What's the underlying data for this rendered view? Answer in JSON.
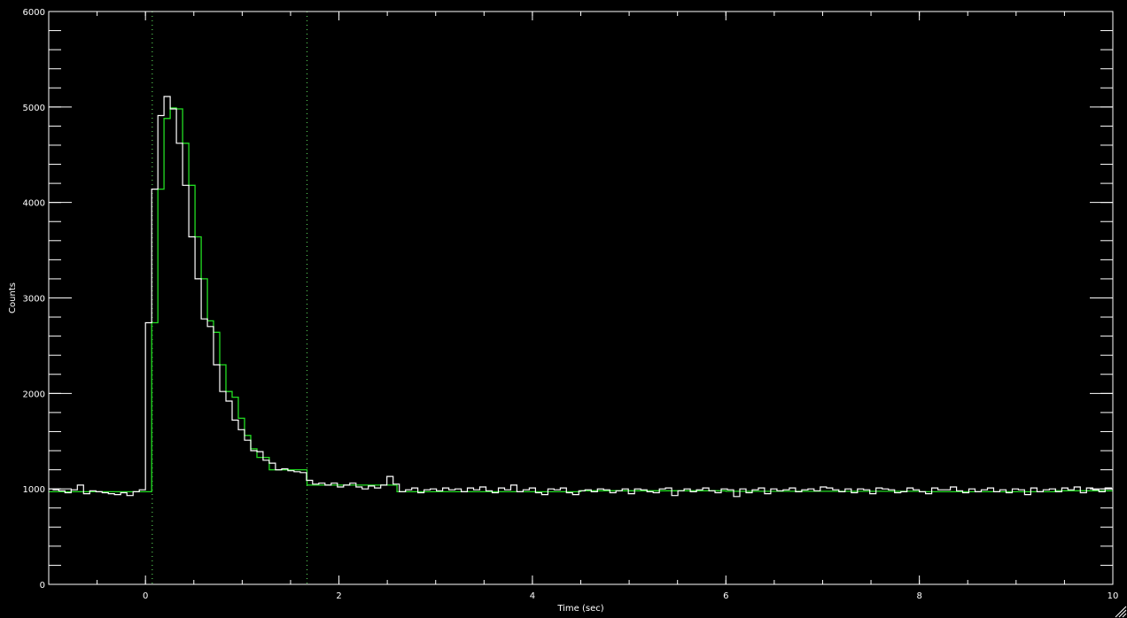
{
  "chart_data": {
    "type": "line",
    "xlabel": "Time (sec)",
    "ylabel": "Counts",
    "xlim": [
      -1,
      10
    ],
    "ylim": [
      0,
      6000
    ],
    "x_ticks": [
      0,
      2,
      4,
      6,
      8,
      10
    ],
    "y_ticks": [
      0,
      1000,
      2000,
      3000,
      4000,
      5000,
      6000
    ],
    "x_minor_step": 0.5,
    "y_minor_step": 200,
    "grid": false,
    "background_color": "#000000",
    "axis_color": "#ffffff",
    "vertical_markers": [
      {
        "x": 0.07,
        "color": "#55cc55",
        "style": "dotted"
      },
      {
        "x": 1.67,
        "color": "#55cc55",
        "style": "dotted"
      }
    ],
    "series": [
      {
        "kind": "observed-histogram",
        "color": "#ffffff",
        "bin_width": 0.064,
        "x_start": -0.96,
        "values": [
          990,
          980,
          960,
          990,
          1040,
          950,
          980,
          970,
          960,
          950,
          940,
          960,
          930,
          970,
          990,
          2740,
          4140,
          4910,
          5110,
          4980,
          4620,
          4180,
          3640,
          3200,
          2780,
          2700,
          2300,
          2020,
          1920,
          1720,
          1620,
          1510,
          1400,
          1390,
          1300,
          1270,
          1200,
          1210,
          1190,
          1180,
          1170,
          1090,
          1050,
          1060,
          1040,
          1060,
          1020,
          1040,
          1060,
          1020,
          1000,
          1030,
          1010,
          1040,
          1130,
          1050,
          970,
          990,
          1010,
          960,
          990,
          1000,
          980,
          1010,
          990,
          1000,
          970,
          1010,
          990,
          1020,
          980,
          960,
          1010,
          990,
          1040,
          970,
          990,
          1010,
          960,
          940,
          1000,
          990,
          1010,
          960,
          940,
          980,
          990,
          970,
          1000,
          990,
          960,
          980,
          1000,
          950,
          1000,
          990,
          970,
          960,
          1000,
          1010,
          930,
          980,
          1000,
          970,
          990,
          1010,
          980,
          960,
          1000,
          990,
          920,
          1000,
          960,
          990,
          1010,
          950,
          1000,
          980,
          990,
          1010,
          970,
          990,
          1000,
          980,
          1020,
          1010,
          990,
          970,
          1000,
          960,
          1000,
          990,
          950,
          1010,
          1000,
          990,
          960,
          970,
          1010,
          990,
          970,
          950,
          1010,
          990,
          990,
          1020,
          980,
          960,
          1000,
          970,
          990,
          1010,
          970,
          990,
          960,
          1000,
          990,
          940,
          1010,
          970,
          990,
          1000,
          970,
          1010,
          990,
          1020,
          960,
          1010,
          990,
          970,
          1010,
          1000,
          1040,
          980,
          1000,
          1010,
          1000
        ]
      },
      {
        "kind": "model-step",
        "color": "#22dd22",
        "bins": [
          {
            "x0": -1.0,
            "x1": 0.064,
            "y": 970
          },
          {
            "x0": 0.064,
            "x1": 0.128,
            "y": 2740
          },
          {
            "x0": 0.128,
            "x1": 0.192,
            "y": 4140
          },
          {
            "x0": 0.192,
            "x1": 0.256,
            "y": 4880
          },
          {
            "x0": 0.256,
            "x1": 0.32,
            "y": 4990
          },
          {
            "x0": 0.32,
            "x1": 0.384,
            "y": 4980
          },
          {
            "x0": 0.384,
            "x1": 0.448,
            "y": 4620
          },
          {
            "x0": 0.448,
            "x1": 0.512,
            "y": 4180
          },
          {
            "x0": 0.512,
            "x1": 0.576,
            "y": 3640
          },
          {
            "x0": 0.576,
            "x1": 0.64,
            "y": 3200
          },
          {
            "x0": 0.64,
            "x1": 0.704,
            "y": 2760
          },
          {
            "x0": 0.704,
            "x1": 0.768,
            "y": 2640
          },
          {
            "x0": 0.768,
            "x1": 0.832,
            "y": 2300
          },
          {
            "x0": 0.832,
            "x1": 0.896,
            "y": 2020
          },
          {
            "x0": 0.896,
            "x1": 0.96,
            "y": 1960
          },
          {
            "x0": 0.96,
            "x1": 1.024,
            "y": 1740
          },
          {
            "x0": 1.024,
            "x1": 1.088,
            "y": 1560
          },
          {
            "x0": 1.088,
            "x1": 1.152,
            "y": 1420
          },
          {
            "x0": 1.152,
            "x1": 1.28,
            "y": 1330
          },
          {
            "x0": 1.28,
            "x1": 1.67,
            "y": 1200
          },
          {
            "x0": 1.67,
            "x1": 2.6,
            "y": 1040
          },
          {
            "x0": 2.6,
            "x1": 4.5,
            "y": 970
          },
          {
            "x0": 4.5,
            "x1": 6.0,
            "y": 980
          },
          {
            "x0": 6.0,
            "x1": 8.0,
            "y": 975
          },
          {
            "x0": 8.0,
            "x1": 9.4,
            "y": 970
          },
          {
            "x0": 9.4,
            "x1": 10.0,
            "y": 980
          }
        ]
      }
    ]
  }
}
